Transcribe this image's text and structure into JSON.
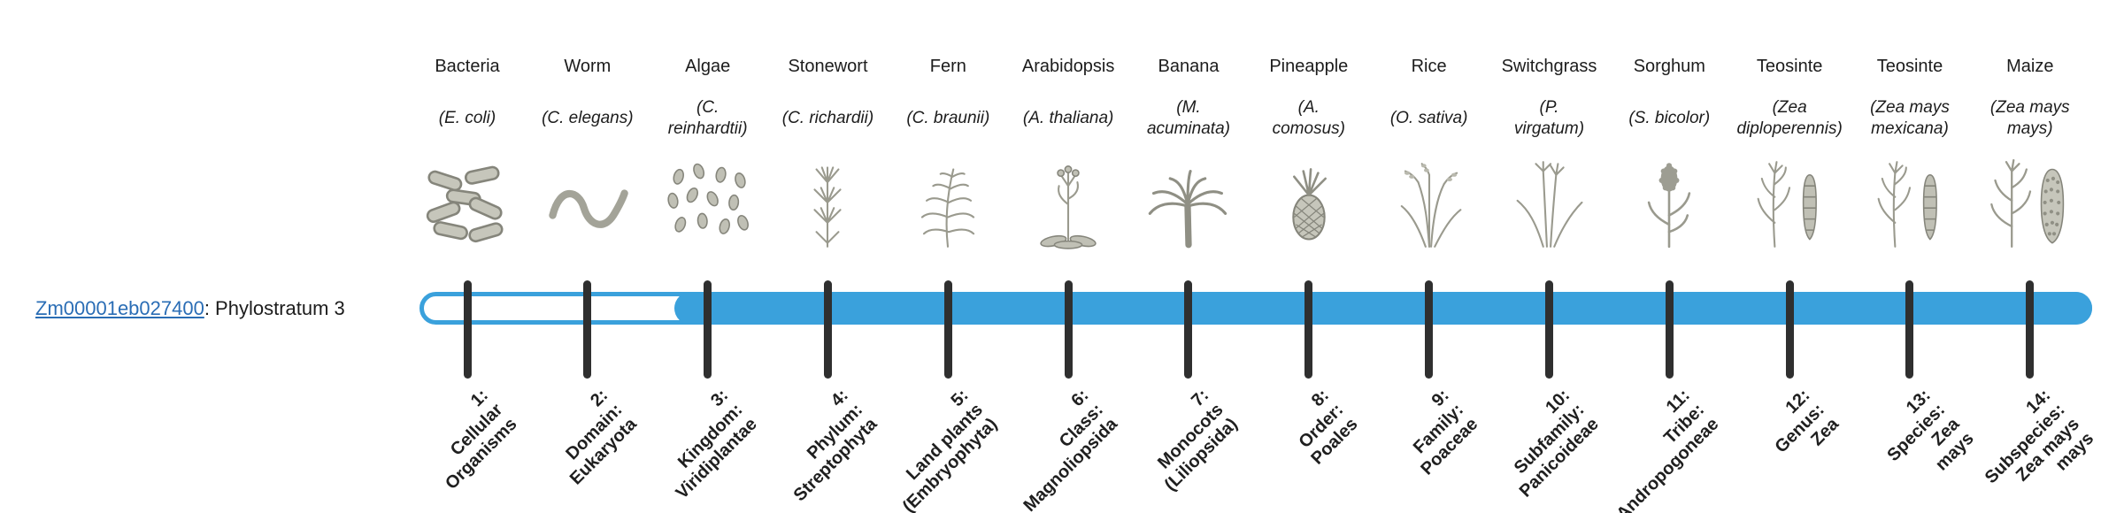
{
  "page": {
    "background_color": "#ffffff"
  },
  "gene": {
    "id": "Zm00001eb027400",
    "suffix": ": Phylostratum 3",
    "phylostratum": 3,
    "link_color": "#2a6db5"
  },
  "timeline": {
    "bar_color": "#3aa1dc",
    "tick_color": "#2f2f2f",
    "filled_from_stratum": 3,
    "total_strata": 14
  },
  "strata": [
    {
      "index": 1,
      "common_name": "Bacteria",
      "scientific_name": "(E. coli)",
      "icon": "bacteria-icon",
      "stage_label": "1:\nCellular\nOrganisms"
    },
    {
      "index": 2,
      "common_name": "Worm",
      "scientific_name": "(C. elegans)",
      "icon": "worm-icon",
      "stage_label": "2:\nDomain:\nEukaryota"
    },
    {
      "index": 3,
      "common_name": "Algae",
      "scientific_name": "(C.\nreinhardtii)",
      "icon": "algae-icon",
      "stage_label": "3:\nKingdom:\nViridiplantae"
    },
    {
      "index": 4,
      "common_name": "Stonewort",
      "scientific_name": "(C. richardii)",
      "icon": "stonewort-icon",
      "stage_label": "4:\nPhylum:\nStreptophyta"
    },
    {
      "index": 5,
      "common_name": "Fern",
      "scientific_name": "(C. braunii)",
      "icon": "fern-icon",
      "stage_label": "5:\nLand plants\n(Embryophyta)"
    },
    {
      "index": 6,
      "common_name": "Arabidopsis",
      "scientific_name": "(A. thaliana)",
      "icon": "arabidopsis-icon",
      "stage_label": "6:\nClass:\nMagnoliopsida"
    },
    {
      "index": 7,
      "common_name": "Banana",
      "scientific_name": "(M.\nacuminata)",
      "icon": "banana-icon",
      "stage_label": "7:\nMonocots\n(Liliopsida)"
    },
    {
      "index": 8,
      "common_name": "Pineapple",
      "scientific_name": "(A.\ncomosus)",
      "icon": "pineapple-icon",
      "stage_label": "8:\nOrder:\nPoales"
    },
    {
      "index": 9,
      "common_name": "Rice",
      "scientific_name": "(O. sativa)",
      "icon": "rice-icon",
      "stage_label": "9:\nFamily:\nPoaceae"
    },
    {
      "index": 10,
      "common_name": "Switchgrass",
      "scientific_name": "(P.\nvirgatum)",
      "icon": "switchgrass-icon",
      "stage_label": "10:\nSubfamily:\nPanicoideae"
    },
    {
      "index": 11,
      "common_name": "Sorghum",
      "scientific_name": "(S. bicolor)",
      "icon": "sorghum-icon",
      "stage_label": "11:\nTribe:\nAndropogoneae"
    },
    {
      "index": 12,
      "common_name": "Teosinte",
      "scientific_name": "(Zea\ndiploperennis)",
      "icon": "teosinte-icon",
      "stage_label": "12:\nGenus:\nZea"
    },
    {
      "index": 13,
      "common_name": "Teosinte",
      "scientific_name": "(Zea mays\nmexicana)",
      "icon": "teosinte-icon",
      "stage_label": "13:\nSpecies:\nZea\nmays"
    },
    {
      "index": 14,
      "common_name": "Maize",
      "scientific_name": "(Zea mays\nmays)",
      "icon": "maize-icon",
      "stage_label": "14:\nSubspecies:\nZea mays\nmays"
    }
  ]
}
